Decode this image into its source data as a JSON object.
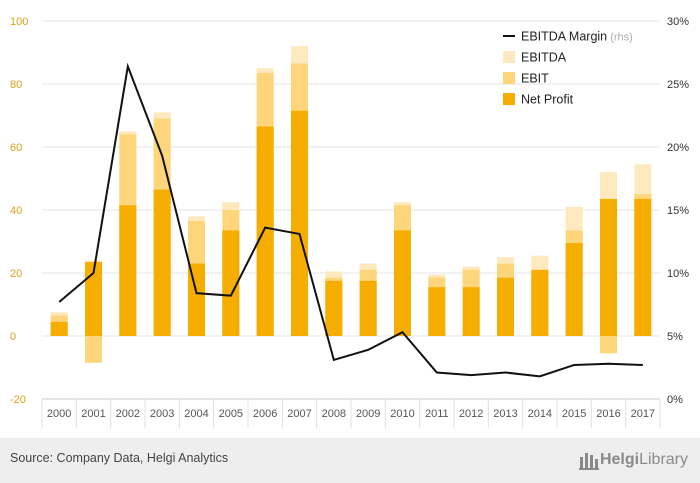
{
  "chart_data": {
    "type": "bar",
    "categories": [
      "2000",
      "2001",
      "2002",
      "2003",
      "2004",
      "2005",
      "2006",
      "2007",
      "2008",
      "2009",
      "2010",
      "2011",
      "2012",
      "2013",
      "2014",
      "2015",
      "2016",
      "2017"
    ],
    "series": [
      {
        "name": "Net Profit",
        "axis": "left",
        "kind": "bar",
        "color": "#f5ad00",
        "values": [
          4.5,
          23.5,
          41.5,
          46.5,
          23.0,
          33.5,
          66.5,
          71.5,
          17.5,
          17.5,
          33.5,
          15.5,
          15.5,
          18.5,
          21.0,
          29.5,
          43.5,
          43.5
        ]
      },
      {
        "name": "EBIT",
        "axis": "left",
        "kind": "bar",
        "color": "#fdd57b",
        "values": [
          6.5,
          -8.5,
          64.0,
          69.0,
          36.5,
          40.0,
          83.5,
          86.5,
          18.5,
          21.0,
          41.5,
          18.5,
          21.0,
          23.0,
          20.0,
          33.5,
          -5.5,
          45.0
        ]
      },
      {
        "name": "EBITDA",
        "axis": "left",
        "kind": "bar",
        "color": "#fee8bd",
        "values": [
          7.5,
          24.0,
          65.0,
          71.0,
          38.0,
          42.5,
          85.0,
          92.0,
          20.5,
          23.0,
          42.5,
          19.5,
          22.0,
          25.0,
          25.5,
          41.0,
          52.0,
          54.5
        ]
      },
      {
        "name": "EBITDA Margin",
        "axis": "right",
        "kind": "line",
        "color": "#111111",
        "values": [
          7.7,
          10.0,
          26.4,
          19.3,
          8.4,
          8.2,
          13.6,
          13.1,
          3.1,
          3.9,
          5.3,
          2.1,
          1.9,
          2.1,
          1.8,
          2.7,
          2.8,
          2.7
        ]
      }
    ],
    "ylim": [
      -20,
      100
    ],
    "yticks": [
      "-20",
      "0",
      "20",
      "40",
      "60",
      "80",
      "100"
    ],
    "y2lim": [
      0,
      30
    ],
    "y2ticks": [
      "0%",
      "5%",
      "10%",
      "15%",
      "20%",
      "25%",
      "30%"
    ],
    "grid": true,
    "legend_position": "top-right"
  },
  "legend": {
    "items": [
      {
        "label": "EBITDA Margin",
        "suffix": "(rhs)",
        "symbol": "line",
        "color": "#111111"
      },
      {
        "label": "EBITDA",
        "suffix": "",
        "symbol": "box",
        "color": "#fee8bd"
      },
      {
        "label": "EBIT",
        "suffix": "",
        "symbol": "box",
        "color": "#fdd57b"
      },
      {
        "label": "Net Profit",
        "suffix": "",
        "symbol": "box",
        "color": "#f5ad00"
      }
    ]
  },
  "footer": {
    "source": "Source: Company Data, Helgi Analytics",
    "logo_word_bold": "Helgi",
    "logo_word_light": "Library"
  }
}
